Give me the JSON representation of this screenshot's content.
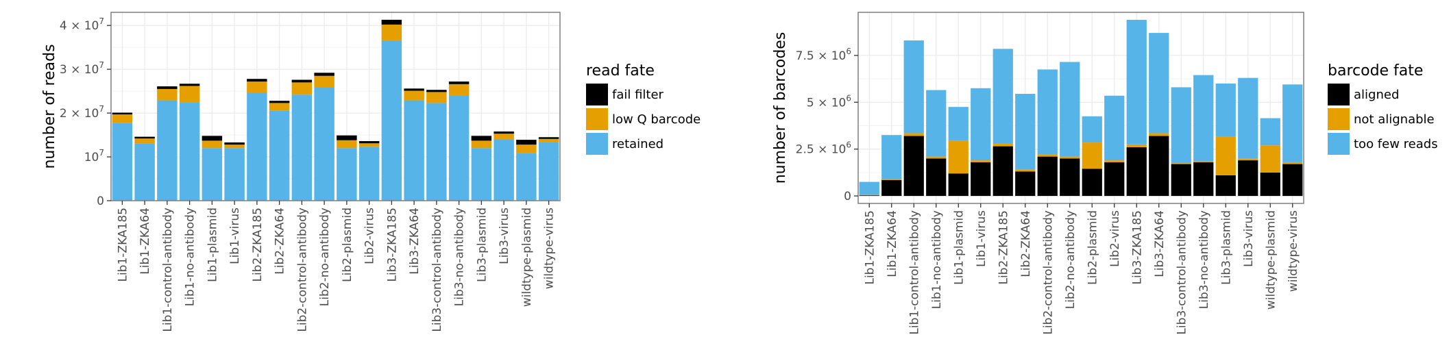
{
  "chart_data": [
    {
      "type": "bar",
      "stacked": true,
      "ylabel": "number of reads",
      "ylim": [
        0,
        43000000
      ],
      "yticks": [
        {
          "value": 0,
          "base": "0",
          "exp": ""
        },
        {
          "value": 10000000,
          "base": "10",
          "exp": "7"
        },
        {
          "value": 20000000,
          "base": "2 × 10",
          "exp": "7"
        },
        {
          "value": 30000000,
          "base": "3 × 10",
          "exp": "7"
        },
        {
          "value": 40000000,
          "base": "4 × 10",
          "exp": "7"
        }
      ],
      "grid": true,
      "legend_title": "read fate",
      "legend_position": "right",
      "categories": [
        "Lib1-ZKA185",
        "Lib1-ZKA64",
        "Lib1-control-antibody",
        "Lib1-no-antibody",
        "Lib1-plasmid",
        "Lib1-virus",
        "Lib2-ZKA185",
        "Lib2-ZKA64",
        "Lib2-control-antibody",
        "Lib2-no-antibody",
        "Lib2-plasmid",
        "Lib2-virus",
        "Lib3-ZKA185",
        "Lib3-ZKA64",
        "Lib3-control-antibody",
        "Lib3-no-antibody",
        "Lib3-plasmid",
        "Lib3-virus",
        "wildtype-plasmid",
        "wildtype-virus"
      ],
      "series": [
        {
          "name": "retained",
          "color": "#56B4E9",
          "values": [
            17800000,
            13000000,
            22900000,
            22500000,
            12000000,
            12000000,
            24700000,
            20500000,
            24200000,
            25800000,
            12000000,
            12300000,
            36600000,
            22900000,
            22300000,
            24000000,
            12000000,
            14000000,
            10800000,
            13300000
          ]
        },
        {
          "name": "low Q barcode",
          "color": "#E69F00",
          "values": [
            1900000,
            1200000,
            2600000,
            3700000,
            1700000,
            800000,
            2500000,
            1800000,
            2800000,
            2700000,
            1800000,
            800000,
            3600000,
            2200000,
            2500000,
            2600000,
            1700000,
            1300000,
            2000000,
            800000
          ]
        },
        {
          "name": "fail filter",
          "color": "#000000",
          "values": [
            400000,
            400000,
            600000,
            500000,
            1100000,
            500000,
            600000,
            500000,
            600000,
            700000,
            1100000,
            500000,
            1100000,
            500000,
            500000,
            600000,
            1100000,
            500000,
            1100000,
            400000
          ]
        }
      ]
    },
    {
      "type": "bar",
      "stacked": true,
      "ylabel": "number of barcodes",
      "ylim": [
        -400000,
        9800000
      ],
      "yticks": [
        {
          "value": 0,
          "base": "0",
          "exp": ""
        },
        {
          "value": 2500000,
          "base": "2.5 × 10",
          "exp": "6"
        },
        {
          "value": 5000000,
          "base": "5 × 10",
          "exp": "6"
        },
        {
          "value": 7500000,
          "base": "7.5 × 10",
          "exp": "6"
        }
      ],
      "grid": true,
      "legend_title": "barcode fate",
      "legend_position": "right",
      "categories": [
        "Lib1-ZKA185",
        "Lib1-ZKA64",
        "Lib1-control-antibody",
        "Lib1-no-antibody",
        "Lib1-plasmid",
        "Lib1-virus",
        "Lib2-ZKA185",
        "Lib2-ZKA64",
        "Lib2-control-antibody",
        "Lib2-no-antibody",
        "Lib2-plasmid",
        "Lib2-virus",
        "Lib3-ZKA185",
        "Lib3-ZKA64",
        "Lib3-control-antibody",
        "Lib3-no-antibody",
        "Lib3-plasmid",
        "Lib3-virus",
        "wildtype-plasmid",
        "wildtype-virus"
      ],
      "series": [
        {
          "name": "aligned",
          "color": "#000000",
          "values": [
            30000,
            850000,
            3200000,
            2000000,
            1200000,
            1800000,
            2650000,
            1300000,
            2100000,
            2000000,
            1450000,
            1800000,
            2600000,
            3200000,
            1700000,
            1800000,
            1100000,
            1900000,
            1250000,
            1700000
          ]
        },
        {
          "name": "not alignable",
          "color": "#E69F00",
          "values": [
            20000,
            50000,
            150000,
            100000,
            1750000,
            100000,
            150000,
            100000,
            100000,
            100000,
            1400000,
            100000,
            150000,
            150000,
            50000,
            50000,
            2050000,
            100000,
            1450000,
            100000
          ]
        },
        {
          "name": "too few reads",
          "color": "#56B4E9",
          "values": [
            700000,
            2350000,
            4950000,
            3550000,
            1800000,
            3850000,
            5050000,
            4050000,
            4550000,
            5050000,
            1400000,
            3450000,
            6650000,
            5350000,
            4050000,
            4600000,
            2850000,
            4300000,
            1450000,
            4150000
          ]
        }
      ]
    }
  ]
}
